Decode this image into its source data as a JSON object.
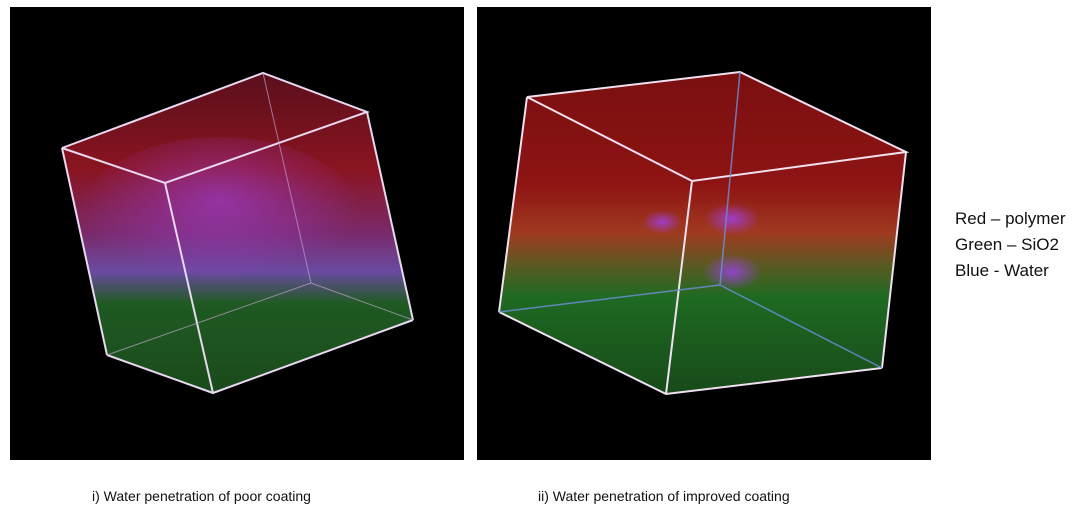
{
  "panels": [
    {
      "caption": "i)    Water penetration of poor coating"
    },
    {
      "caption": "ii) Water penetration of improved coating"
    }
  ],
  "legend": {
    "items": [
      {
        "label": "Red – polymer",
        "color": "#b01818"
      },
      {
        "label": "Green – SiO2",
        "color": "#1f7a1f"
      },
      {
        "label": "Blue -  Water",
        "color": "#7a3cd0"
      }
    ]
  }
}
